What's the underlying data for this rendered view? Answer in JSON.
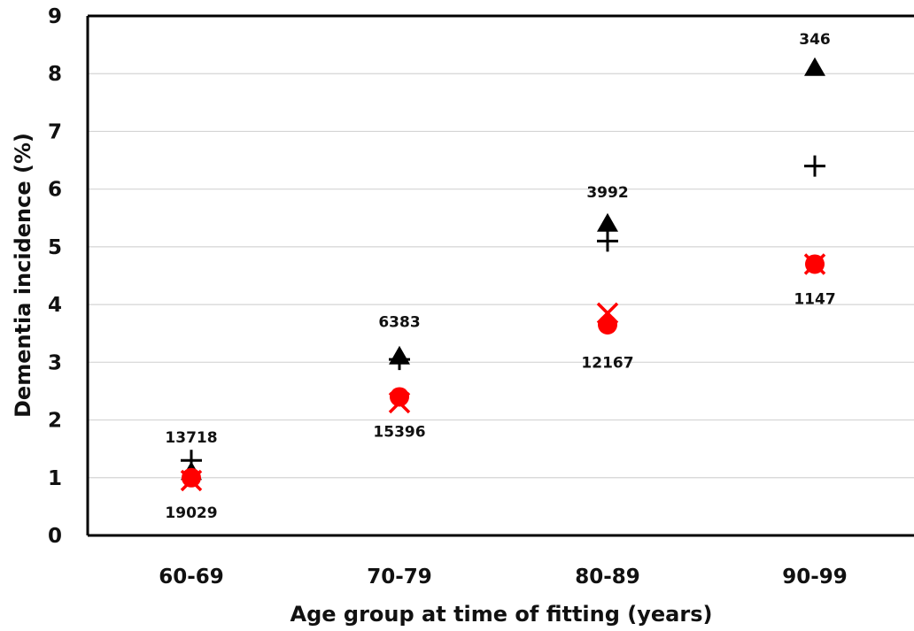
{
  "chart_data": {
    "type": "scatter",
    "title": "",
    "xlabel": "Age group at time of fitting (years)",
    "ylabel": "Dementia incidence (%)",
    "categories": [
      "60-69",
      "70-79",
      "80-89",
      "90-99"
    ],
    "ylim": [
      0,
      9
    ],
    "yticks": [
      "0",
      "1",
      "2",
      "3",
      "4",
      "5",
      "6",
      "7",
      "8",
      "9"
    ],
    "grid": true,
    "legend": "none",
    "series": [
      {
        "marker": "triangle",
        "color": "#000000",
        "values": [
          1.1,
          3.1,
          5.4,
          8.1
        ]
      },
      {
        "marker": "plus",
        "color": "#000000",
        "values": [
          1.3,
          3.05,
          5.1,
          6.4
        ]
      },
      {
        "marker": "circle",
        "color": "#ff0000",
        "values": [
          1.0,
          2.4,
          3.65,
          4.7
        ]
      },
      {
        "marker": "cross",
        "color": "#ff0000",
        "values": [
          0.95,
          2.3,
          3.85,
          4.7
        ]
      }
    ],
    "annotations": [
      {
        "text": "13718",
        "category": "60-69",
        "y": 1.7
      },
      {
        "text": "19029",
        "category": "60-69",
        "y": 0.4
      },
      {
        "text": "6383",
        "category": "70-79",
        "y": 3.7
      },
      {
        "text": "15396",
        "category": "70-79",
        "y": 1.8
      },
      {
        "text": "3992",
        "category": "80-89",
        "y": 5.95
      },
      {
        "text": "12167",
        "category": "80-89",
        "y": 3.0
      },
      {
        "text": "346",
        "category": "90-99",
        "y": 8.6
      },
      {
        "text": "1147",
        "category": "90-99",
        "y": 4.1
      }
    ]
  }
}
